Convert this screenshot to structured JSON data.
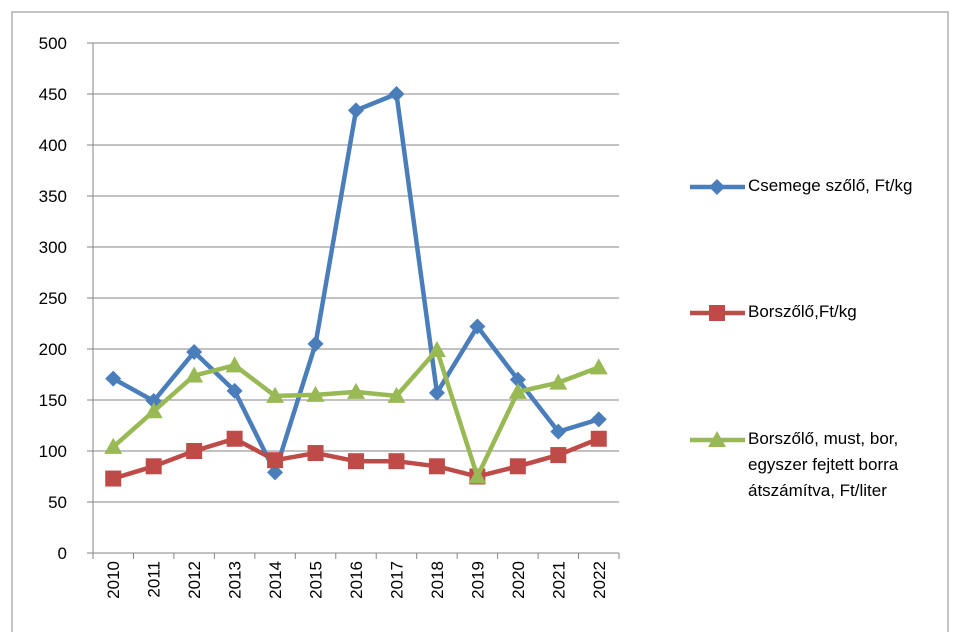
{
  "chart_data": {
    "type": "line",
    "categories": [
      "2010",
      "2011",
      "2012",
      "2013",
      "2014",
      "2015",
      "2016",
      "2017",
      "2018",
      "2019",
      "2020",
      "2021",
      "2022"
    ],
    "series": [
      {
        "name": "Csemege szőlő, Ft/kg",
        "color": "#4a7ebb",
        "marker": "diamond",
        "values": [
          171,
          149,
          197,
          159,
          79,
          205,
          434,
          450,
          157,
          222,
          170,
          119,
          131
        ]
      },
      {
        "name": "Borszőlő,Ft/kg",
        "color": "#be4b48",
        "marker": "square",
        "values": [
          73,
          85,
          100,
          112,
          91,
          98,
          90,
          90,
          85,
          75,
          85,
          96,
          112
        ]
      },
      {
        "name": "Borszőlő, must, bor, egyszer fejtett borra átszámítva, Ft/liter",
        "color": "#98b954",
        "marker": "triangle",
        "values": [
          104,
          139,
          174,
          184,
          154,
          155,
          158,
          154,
          199,
          75,
          158,
          167,
          182
        ]
      }
    ],
    "ylim": [
      0,
      500
    ],
    "yticks": [
      0,
      50,
      100,
      150,
      200,
      250,
      300,
      350,
      400,
      450,
      500
    ],
    "grid": true,
    "legend": "right"
  }
}
